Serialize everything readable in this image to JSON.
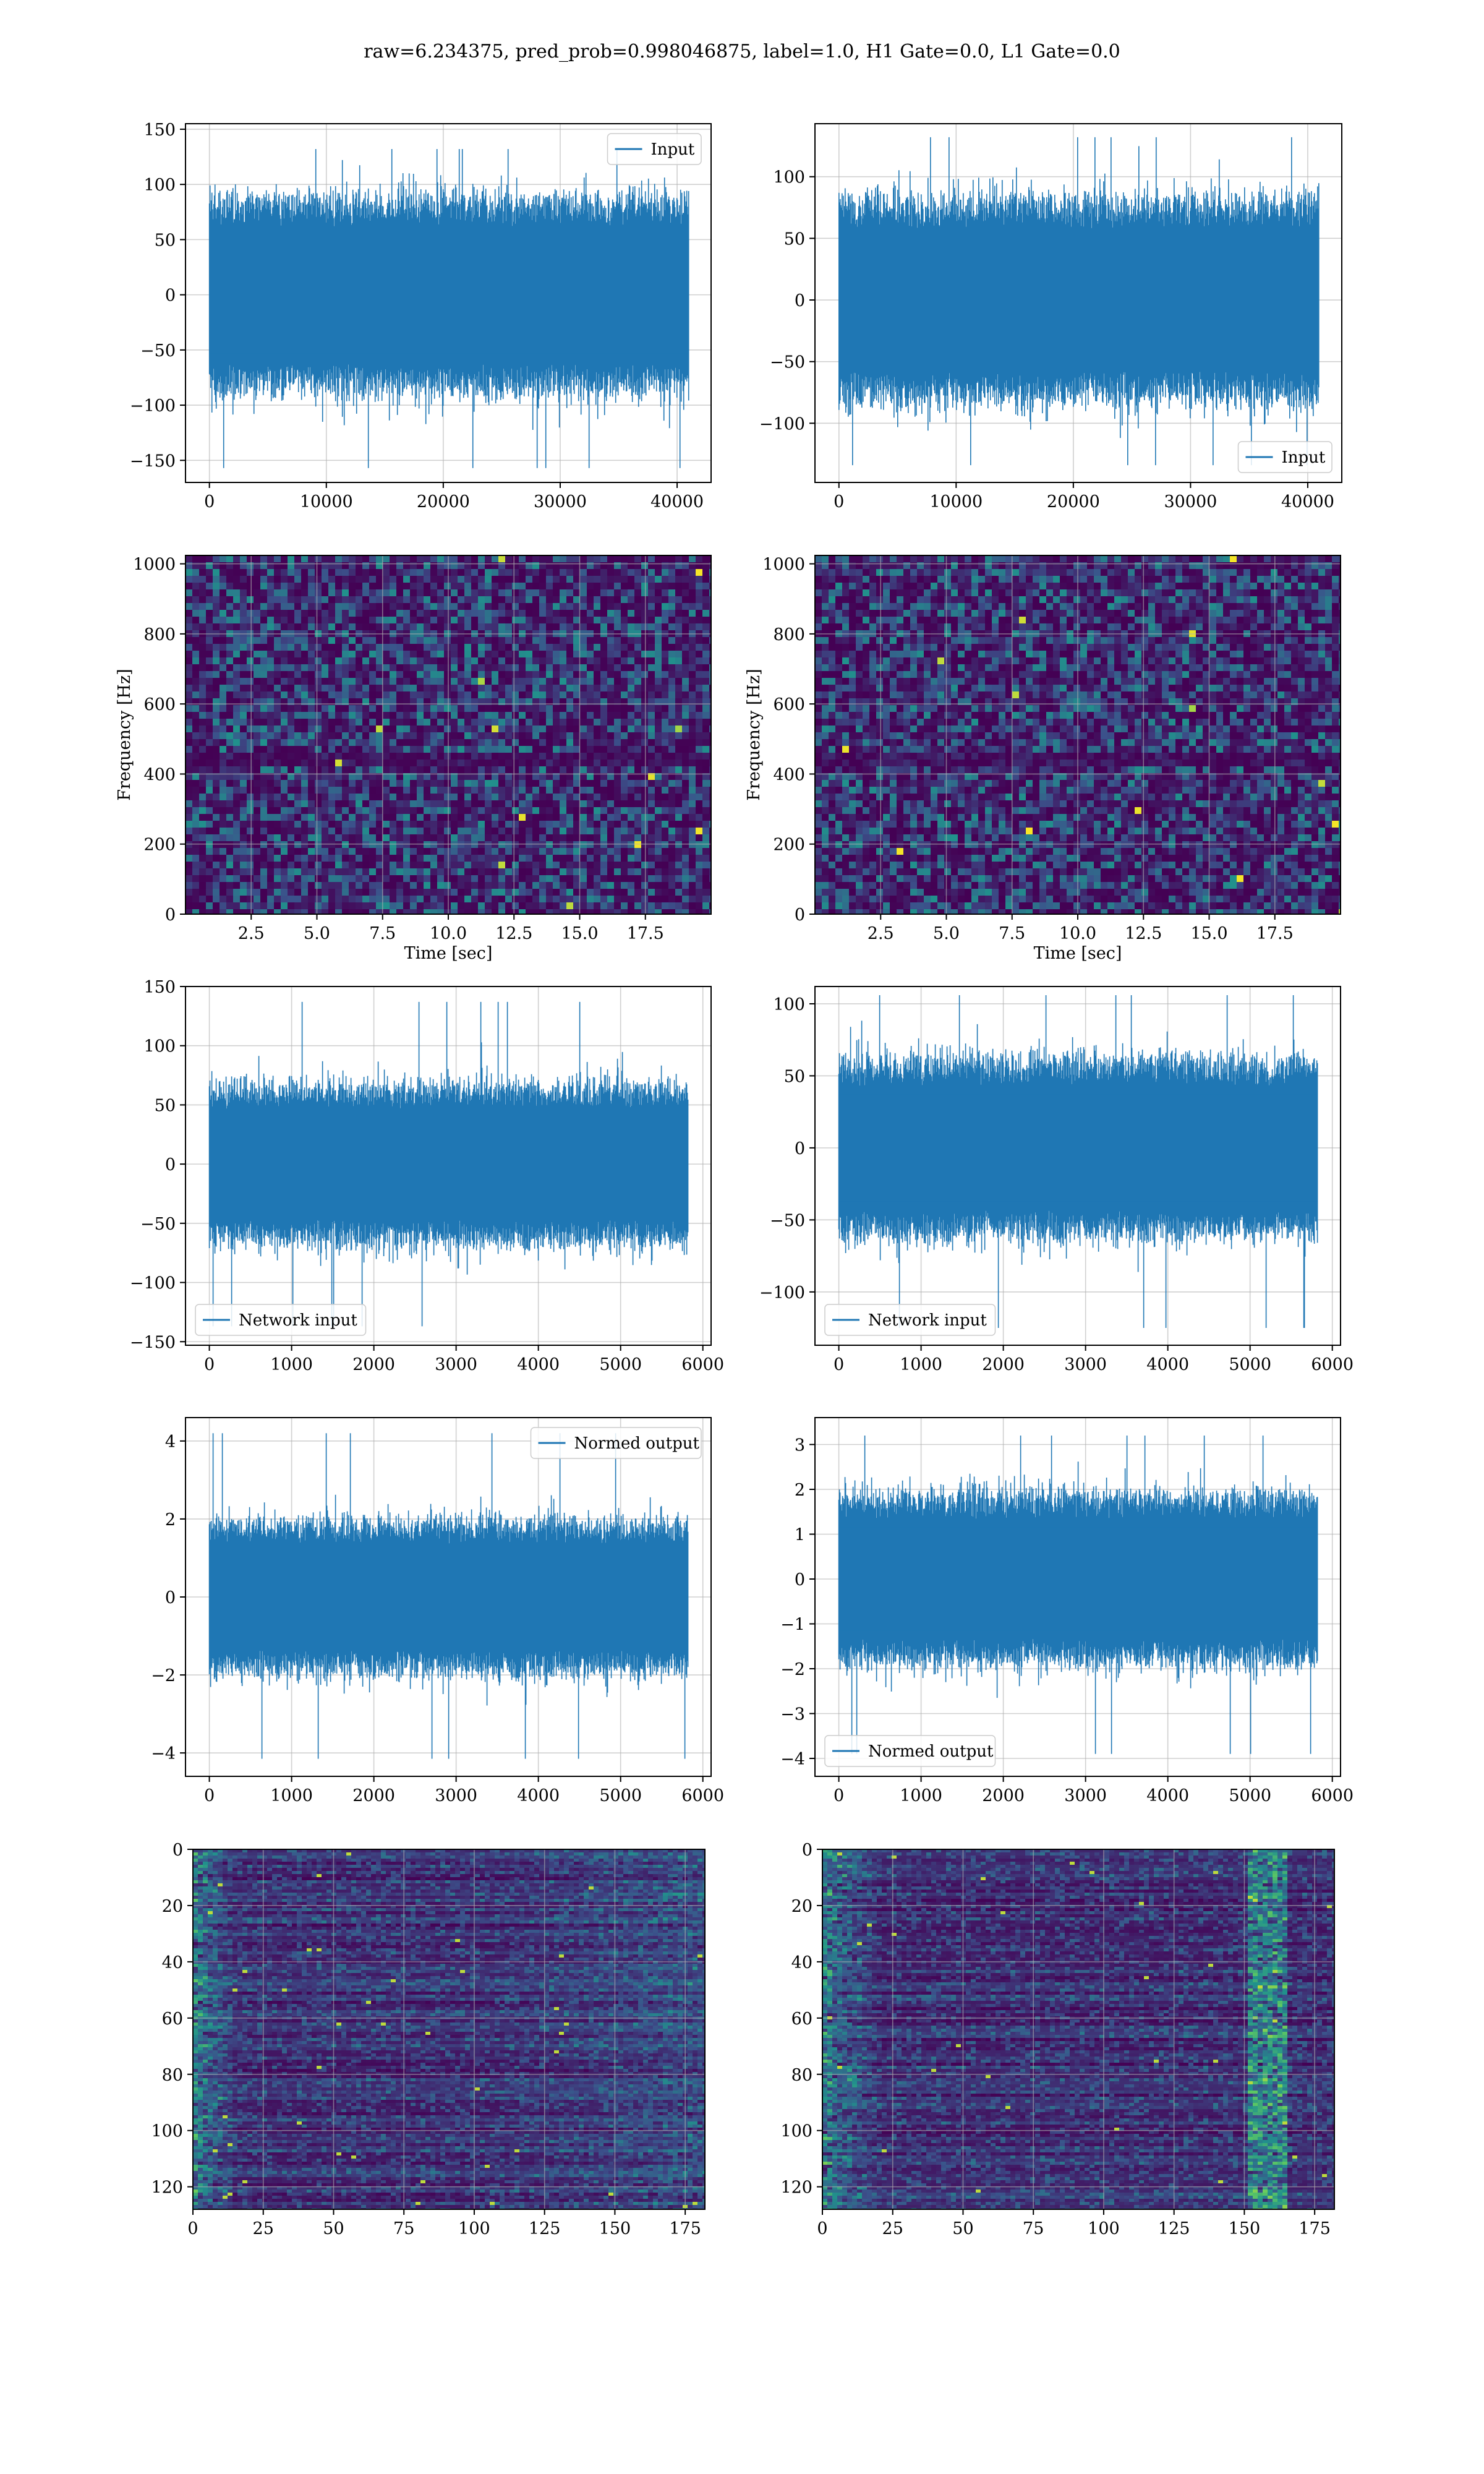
{
  "title": "raw=6.234375, pred_prob=0.998046875, label=1.0, H1 Gate=0.0, L1 Gate=0.0",
  "colors": {
    "line": "#1f77b4",
    "grid": "#b0b0b0",
    "viridis_low": "#440154",
    "viridis_high": "#fde725"
  },
  "chart_data": [
    {
      "id": "r1c1",
      "type": "line",
      "title": "",
      "xlabel": "",
      "ylabel": "",
      "xlim": [
        -2045,
        42905
      ],
      "ylim": [
        -170,
        155
      ],
      "xticks": [
        0,
        10000,
        20000,
        30000,
        40000
      ],
      "yticks": [
        -150,
        -100,
        -50,
        0,
        50,
        100,
        150
      ],
      "grid": true,
      "legend": "upper right",
      "series": [
        {
          "name": "Input",
          "n": 40960,
          "x_range": [
            0,
            40960
          ],
          "envelope": [
            -86,
            86
          ],
          "spikes_min": -157,
          "spikes_max": 132
        }
      ]
    },
    {
      "id": "r1c2",
      "type": "line",
      "title": "",
      "xlabel": "",
      "ylabel": "",
      "xlim": [
        -2045,
        42905
      ],
      "ylim": [
        -148,
        143
      ],
      "xticks": [
        0,
        10000,
        20000,
        30000,
        40000
      ],
      "yticks": [
        -100,
        -50,
        0,
        50,
        100
      ],
      "grid": true,
      "legend": "lower right",
      "series": [
        {
          "name": "Input",
          "n": 40960,
          "x_range": [
            0,
            40960
          ],
          "envelope": [
            -80,
            80
          ],
          "spikes_min": -134,
          "spikes_max": 132
        }
      ]
    },
    {
      "id": "r2c1",
      "type": "heatmap",
      "title": "",
      "xlabel": "Time [sec]",
      "ylabel": "Frequency [Hz]",
      "xlim": [
        0,
        20
      ],
      "ylim": [
        0,
        1024
      ],
      "xticks": [
        2.5,
        5.0,
        7.5,
        10.0,
        12.5,
        15.0,
        17.5
      ],
      "yticks": [
        0,
        200,
        400,
        600,
        800,
        1000
      ],
      "grid": true,
      "colormap": "viridis"
    },
    {
      "id": "r2c2",
      "type": "heatmap",
      "title": "",
      "xlabel": "Time [sec]",
      "ylabel": "Frequency [Hz]",
      "xlim": [
        0,
        20
      ],
      "ylim": [
        0,
        1024
      ],
      "xticks": [
        2.5,
        5.0,
        7.5,
        10.0,
        12.5,
        15.0,
        17.5
      ],
      "yticks": [
        0,
        200,
        400,
        600,
        800,
        1000
      ],
      "grid": true,
      "colormap": "viridis"
    },
    {
      "id": "r3c1",
      "type": "line",
      "title": "",
      "xlabel": "",
      "ylabel": "",
      "xlim": [
        -290,
        6100
      ],
      "ylim": [
        -153,
        150
      ],
      "xticks": [
        0,
        1000,
        2000,
        3000,
        4000,
        5000,
        6000
      ],
      "yticks": [
        -150,
        -100,
        -50,
        0,
        50,
        100,
        150
      ],
      "grid": true,
      "legend": "lower left",
      "series": [
        {
          "name": "Network input",
          "n": 5820,
          "x_range": [
            0,
            5820
          ],
          "envelope": [
            -65,
            65
          ],
          "spikes_min": -137,
          "spikes_max": 137
        }
      ]
    },
    {
      "id": "r3c2",
      "type": "line",
      "title": "",
      "xlabel": "",
      "ylabel": "",
      "xlim": [
        -290,
        6100
      ],
      "ylim": [
        -137,
        112
      ],
      "xticks": [
        0,
        1000,
        2000,
        3000,
        4000,
        5000,
        6000
      ],
      "yticks": [
        -100,
        -50,
        0,
        50,
        100
      ],
      "grid": true,
      "legend": "lower left",
      "series": [
        {
          "name": "Network input",
          "n": 5820,
          "x_range": [
            0,
            5820
          ],
          "envelope": [
            -60,
            60
          ],
          "spikes_min": -125,
          "spikes_max": 106
        }
      ]
    },
    {
      "id": "r4c1",
      "type": "line",
      "title": "",
      "xlabel": "",
      "ylabel": "",
      "xlim": [
        -290,
        6100
      ],
      "ylim": [
        -4.6,
        4.6
      ],
      "xticks": [
        0,
        1000,
        2000,
        3000,
        4000,
        5000,
        6000
      ],
      "yticks": [
        -4,
        -2,
        0,
        2,
        4
      ],
      "grid": true,
      "legend": "upper right",
      "series": [
        {
          "name": "Normed output",
          "n": 5820,
          "x_range": [
            0,
            5820
          ],
          "envelope": [
            -1.9,
            1.9
          ],
          "spikes_min": -4.15,
          "spikes_max": 4.2
        }
      ]
    },
    {
      "id": "r4c2",
      "type": "line",
      "title": "",
      "xlabel": "",
      "ylabel": "",
      "xlim": [
        -290,
        6100
      ],
      "ylim": [
        -4.4,
        3.6
      ],
      "xticks": [
        0,
        1000,
        2000,
        3000,
        4000,
        5000,
        6000
      ],
      "yticks": [
        -4,
        -3,
        -2,
        -1,
        0,
        1,
        2,
        3
      ],
      "grid": true,
      "legend": "lower left",
      "series": [
        {
          "name": "Normed output",
          "n": 5820,
          "x_range": [
            0,
            5820
          ],
          "envelope": [
            -1.85,
            1.85
          ],
          "spikes_min": -3.9,
          "spikes_max": 3.2
        }
      ]
    },
    {
      "id": "r5c1",
      "type": "heatmap",
      "title": "",
      "xlabel": "",
      "ylabel": "",
      "xlim": [
        0,
        182
      ],
      "ylim": [
        128,
        0
      ],
      "xticks": [
        0,
        25,
        50,
        75,
        100,
        125,
        150,
        175
      ],
      "yticks": [
        0,
        20,
        40,
        60,
        80,
        100,
        120
      ],
      "grid": true,
      "colormap": "viridis"
    },
    {
      "id": "r5c2",
      "type": "heatmap",
      "title": "",
      "xlabel": "",
      "ylabel": "",
      "xlim": [
        0,
        182
      ],
      "ylim": [
        128,
        0
      ],
      "xticks": [
        0,
        25,
        50,
        75,
        100,
        125,
        150,
        175
      ],
      "yticks": [
        0,
        20,
        40,
        60,
        80,
        100,
        120
      ],
      "grid": true,
      "colormap": "viridis"
    }
  ]
}
